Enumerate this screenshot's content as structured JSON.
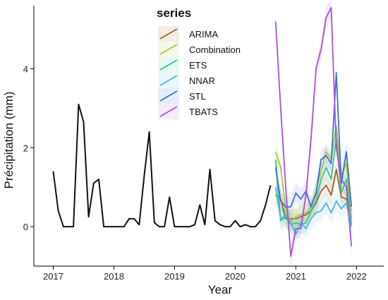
{
  "chart_data": {
    "type": "line",
    "xlabel": "Year",
    "ylabel": "Précipitation (mm)",
    "x_ticks": [
      "2017",
      "2018",
      "2019",
      "2020",
      "2021",
      "2022"
    ],
    "y_ticks": [
      "0",
      "2",
      "4"
    ],
    "xlim": [
      2016.68,
      2022.45
    ],
    "ylim": [
      -1.0,
      5.6
    ],
    "grid": false,
    "legend": {
      "title": "series",
      "position": "top-center-inside"
    },
    "observed": {
      "color": "#111111",
      "x": [
        2017.0,
        2017.083,
        2017.167,
        2017.25,
        2017.333,
        2017.417,
        2017.5,
        2017.583,
        2017.667,
        2017.75,
        2017.833,
        2017.917,
        2018.0,
        2018.083,
        2018.167,
        2018.25,
        2018.333,
        2018.417,
        2018.5,
        2018.583,
        2018.667,
        2018.75,
        2018.833,
        2018.917,
        2019.0,
        2019.083,
        2019.167,
        2019.25,
        2019.333,
        2019.417,
        2019.5,
        2019.583,
        2019.667,
        2019.75,
        2019.833,
        2019.917,
        2020.0,
        2020.083,
        2020.167,
        2020.25,
        2020.333,
        2020.417,
        2020.5,
        2020.583
      ],
      "y": [
        1.4,
        0.4,
        0.0,
        0.0,
        0.0,
        3.1,
        2.65,
        0.25,
        1.1,
        1.2,
        0.0,
        0.0,
        0.0,
        0.0,
        0.0,
        0.2,
        0.2,
        0.05,
        1.3,
        2.4,
        0.1,
        0.0,
        0.0,
        0.75,
        0.0,
        0.0,
        0.0,
        0.0,
        0.05,
        0.55,
        0.05,
        1.45,
        0.15,
        0.05,
        0.0,
        0.0,
        0.15,
        0.0,
        0.05,
        0.0,
        0.0,
        0.15,
        0.55,
        1.05
      ]
    },
    "forecast_x": [
      2020.667,
      2020.75,
      2020.833,
      2020.917,
      2021.0,
      2021.083,
      2021.167,
      2021.25,
      2021.333,
      2021.417,
      2021.5,
      2021.583,
      2021.667,
      2021.75,
      2021.833,
      2021.917
    ],
    "series": [
      {
        "name": "ARIMA",
        "color": "#a0622d",
        "values": [
          0.8,
          0.7,
          0.2,
          0.2,
          0.2,
          0.25,
          0.3,
          0.4,
          0.6,
          0.9,
          1.05,
          0.8,
          1.45,
          0.75,
          0.7,
          0.4
        ]
      },
      {
        "name": "Combination",
        "color": "#a8c63c",
        "values": [
          1.9,
          1.5,
          0.45,
          0.1,
          0.25,
          0.3,
          0.35,
          0.5,
          0.9,
          1.4,
          1.9,
          1.7,
          2.55,
          1.3,
          1.6,
          0.2
        ]
      },
      {
        "name": "ETS",
        "color": "#3cbf8c",
        "values": [
          1.7,
          0.15,
          0.25,
          0.05,
          0.1,
          0.05,
          0.1,
          0.4,
          0.65,
          1.2,
          1.5,
          1.2,
          2.25,
          0.85,
          1.2,
          0.05
        ]
      },
      {
        "name": "NNAR",
        "color": "#4ab5d8",
        "values": [
          1.0,
          0.2,
          0.3,
          0.1,
          -0.2,
          0.1,
          -0.05,
          0.2,
          0.35,
          0.4,
          0.6,
          0.35,
          0.65,
          0.45,
          0.6,
          0.0
        ]
      },
      {
        "name": "STL",
        "color": "#3e6fd6",
        "values": [
          1.5,
          0.65,
          0.5,
          0.5,
          0.85,
          0.7,
          0.9,
          0.5,
          0.85,
          1.7,
          1.8,
          1.6,
          3.9,
          1.1,
          1.9,
          0.5
        ]
      },
      {
        "name": "TBATS",
        "color": "#a651d9",
        "values": [
          5.2,
          3.0,
          1.0,
          -0.75,
          -0.05,
          -0.05,
          0.8,
          2.2,
          4.0,
          4.5,
          5.3,
          5.55,
          2.0,
          1.2,
          1.0,
          -0.5
        ]
      }
    ]
  }
}
